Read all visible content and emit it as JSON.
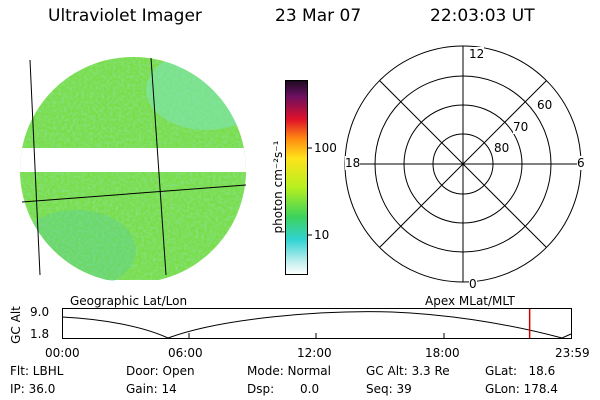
{
  "header": {
    "instrument": "Ultraviolet Imager",
    "date": "23 Mar 07",
    "time": "22:03:03 UT"
  },
  "colorbar": {
    "unit_label": "photon cm⁻²s⁻¹",
    "ticks": [
      "100",
      "10"
    ]
  },
  "polar_plot": {
    "mlt_labels": {
      "top": "12",
      "left": "18",
      "right": "6",
      "bottom": "0"
    },
    "mlat_labels": [
      "60",
      "70",
      "80"
    ]
  },
  "panel_labels": {
    "geo": "Geographic Lat/Lon",
    "apex": "Apex MLat/MLT"
  },
  "orbit_plot": {
    "ylabel": "GC Alt",
    "yticks": [
      "9.0",
      "1.8"
    ],
    "xticks": [
      "00:00",
      "06:00",
      "12:00",
      "18:00",
      "23:59"
    ],
    "current_time_marker_hours": 22.05
  },
  "status": {
    "filter": "Flt: LBHL",
    "ip": "IP: 36.0",
    "door": "Door: Open",
    "gain": "Gain: 14",
    "mode": "Mode: Normal",
    "dsp_label": "Dsp:",
    "dsp_value": "0.0",
    "gc_alt": "GC Alt: 3.3 Re",
    "seq": "Seq: 39",
    "glat": "GLat:   18.6",
    "glon": "GLon: 178.4"
  }
}
